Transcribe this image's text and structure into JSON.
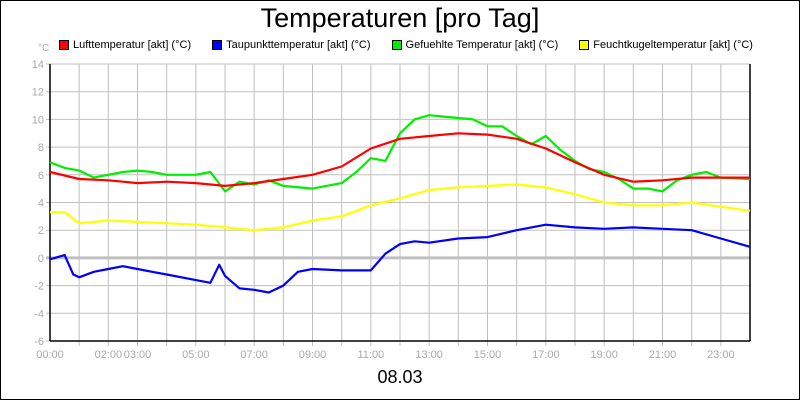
{
  "chart_data": {
    "type": "line",
    "title": "Temperaturen [pro Tag]",
    "xlabel": "08.03",
    "ylabel": "°C",
    "ylim": [
      -6,
      14
    ],
    "yticks": [
      "-6",
      "-4",
      "-2",
      "0",
      "2",
      "4",
      "6",
      "8",
      "10",
      "12",
      "14"
    ],
    "xlim_hours": [
      0,
      24
    ],
    "xtick_labels": [
      {
        "h": 0,
        "label": "00:00"
      },
      {
        "h": 2,
        "label": "02:00"
      },
      {
        "h": 3,
        "label": "03:00"
      },
      {
        "h": 5,
        "label": "05:00"
      },
      {
        "h": 7,
        "label": "07:00"
      },
      {
        "h": 9,
        "label": "09:00"
      },
      {
        "h": 11,
        "label": "11:00"
      },
      {
        "h": 13,
        "label": "13:00"
      },
      {
        "h": 15,
        "label": "15:00"
      },
      {
        "h": 17,
        "label": "17:00"
      },
      {
        "h": 19,
        "label": "19:00"
      },
      {
        "h": 21,
        "label": "21:00"
      },
      {
        "h": 23,
        "label": "23:00"
      }
    ],
    "grid": true,
    "legend_position": "top",
    "series": [
      {
        "name": "Lufttemperatur [akt] (°C)",
        "color": "#ff0000",
        "points": [
          [
            0,
            6.2
          ],
          [
            1,
            5.7
          ],
          [
            2,
            5.6
          ],
          [
            3,
            5.4
          ],
          [
            4,
            5.5
          ],
          [
            5,
            5.4
          ],
          [
            6,
            5.2
          ],
          [
            7,
            5.4
          ],
          [
            8,
            5.7
          ],
          [
            9,
            6.0
          ],
          [
            10,
            6.6
          ],
          [
            11,
            7.9
          ],
          [
            12,
            8.6
          ],
          [
            13,
            8.8
          ],
          [
            14,
            9.0
          ],
          [
            15,
            8.9
          ],
          [
            16,
            8.6
          ],
          [
            17,
            7.9
          ],
          [
            18,
            6.9
          ],
          [
            19,
            6.0
          ],
          [
            20,
            5.5
          ],
          [
            21,
            5.6
          ],
          [
            22,
            5.8
          ],
          [
            23,
            5.8
          ],
          [
            24,
            5.8
          ]
        ]
      },
      {
        "name": "Taupunkttemperatur [akt] (°C)",
        "color": "#0000ff",
        "points": [
          [
            0,
            -0.1
          ],
          [
            0.5,
            0.2
          ],
          [
            0.8,
            -1.2
          ],
          [
            1,
            -1.4
          ],
          [
            1.5,
            -1.0
          ],
          [
            2,
            -0.8
          ],
          [
            2.5,
            -0.6
          ],
          [
            3,
            -0.8
          ],
          [
            3.5,
            -1.0
          ],
          [
            4,
            -1.2
          ],
          [
            5,
            -1.6
          ],
          [
            5.5,
            -1.8
          ],
          [
            5.8,
            -0.5
          ],
          [
            6,
            -1.3
          ],
          [
            6.5,
            -2.2
          ],
          [
            7,
            -2.3
          ],
          [
            7.5,
            -2.5
          ],
          [
            8,
            -2.0
          ],
          [
            8.5,
            -1.0
          ],
          [
            9,
            -0.8
          ],
          [
            10,
            -0.9
          ],
          [
            11,
            -0.9
          ],
          [
            11.5,
            0.3
          ],
          [
            12,
            1.0
          ],
          [
            12.5,
            1.2
          ],
          [
            13,
            1.1
          ],
          [
            14,
            1.4
          ],
          [
            15,
            1.5
          ],
          [
            16,
            2.0
          ],
          [
            16.5,
            2.2
          ],
          [
            17,
            2.4
          ],
          [
            18,
            2.2
          ],
          [
            19,
            2.1
          ],
          [
            20,
            2.2
          ],
          [
            21,
            2.1
          ],
          [
            22,
            2.0
          ],
          [
            23,
            1.4
          ],
          [
            24,
            0.8
          ]
        ]
      },
      {
        "name": "Gefuehlte Temperatur [akt] (°C)",
        "color": "#00ee00",
        "points": [
          [
            0,
            6.9
          ],
          [
            0.5,
            6.5
          ],
          [
            1,
            6.3
          ],
          [
            1.5,
            5.8
          ],
          [
            2,
            6.0
          ],
          [
            2.5,
            6.2
          ],
          [
            3,
            6.3
          ],
          [
            3.5,
            6.2
          ],
          [
            4,
            6.0
          ],
          [
            4.5,
            6.0
          ],
          [
            5,
            6.0
          ],
          [
            5.5,
            6.2
          ],
          [
            6,
            4.8
          ],
          [
            6.5,
            5.5
          ],
          [
            7,
            5.3
          ],
          [
            7.5,
            5.6
          ],
          [
            8,
            5.2
          ],
          [
            9,
            5.0
          ],
          [
            10,
            5.4
          ],
          [
            10.5,
            6.2
          ],
          [
            11,
            7.2
          ],
          [
            11.5,
            7.0
          ],
          [
            12,
            9.0
          ],
          [
            12.5,
            10.0
          ],
          [
            13,
            10.3
          ],
          [
            13.5,
            10.2
          ],
          [
            14,
            10.1
          ],
          [
            14.5,
            10.0
          ],
          [
            15,
            9.5
          ],
          [
            15.5,
            9.5
          ],
          [
            16,
            8.8
          ],
          [
            16.5,
            8.2
          ],
          [
            17,
            8.8
          ],
          [
            17.5,
            7.8
          ],
          [
            18,
            7.0
          ],
          [
            18.5,
            6.4
          ],
          [
            19,
            6.2
          ],
          [
            19.5,
            5.7
          ],
          [
            20,
            5.0
          ],
          [
            20.5,
            5.0
          ],
          [
            21,
            4.8
          ],
          [
            21.5,
            5.6
          ],
          [
            22,
            6.0
          ],
          [
            22.5,
            6.2
          ],
          [
            23,
            5.8
          ],
          [
            24,
            5.7
          ]
        ]
      },
      {
        "name": "Feuchtkugeltemperatur [akt] (°C)",
        "color": "#ffff00",
        "points": [
          [
            0,
            3.3
          ],
          [
            0.5,
            3.3
          ],
          [
            1,
            2.5
          ],
          [
            2,
            2.7
          ],
          [
            3,
            2.6
          ],
          [
            4,
            2.5
          ],
          [
            5,
            2.4
          ],
          [
            6,
            2.2
          ],
          [
            7,
            2.0
          ],
          [
            8,
            2.2
          ],
          [
            9,
            2.7
          ],
          [
            10,
            3.0
          ],
          [
            11,
            3.8
          ],
          [
            12,
            4.3
          ],
          [
            13,
            4.9
          ],
          [
            14,
            5.1
          ],
          [
            15,
            5.2
          ],
          [
            16,
            5.3
          ],
          [
            17,
            5.1
          ],
          [
            18,
            4.6
          ],
          [
            19,
            4.0
          ],
          [
            20,
            3.8
          ],
          [
            21,
            3.8
          ],
          [
            22,
            4.0
          ],
          [
            23,
            3.7
          ],
          [
            24,
            3.4
          ]
        ]
      }
    ]
  }
}
